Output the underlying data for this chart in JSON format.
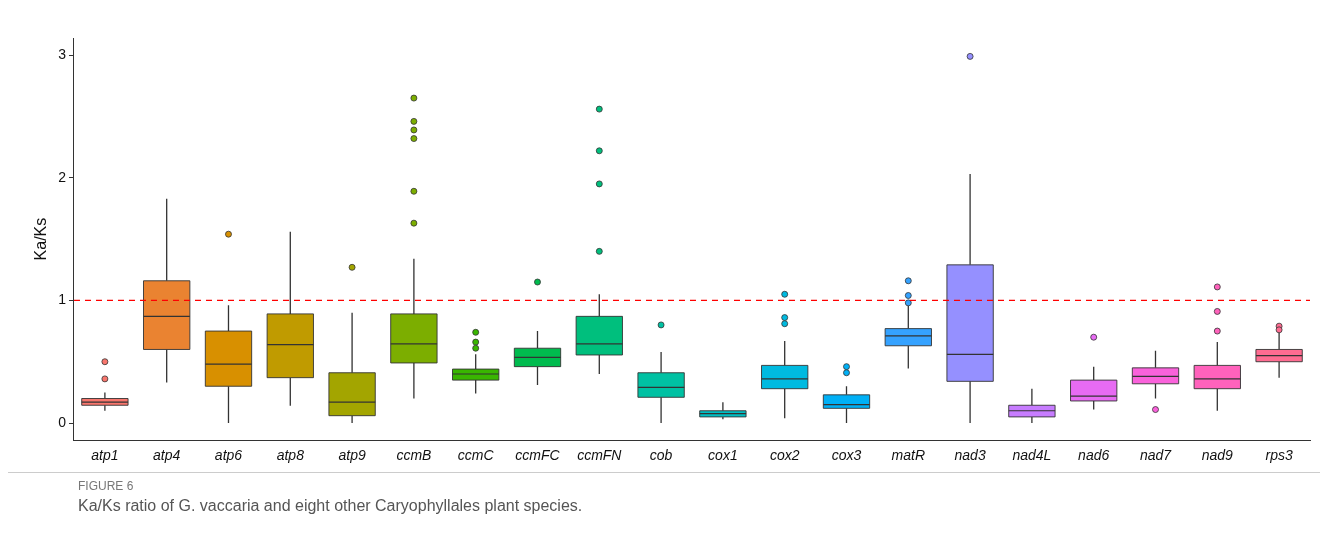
{
  "chart_data": {
    "type": "box",
    "ylabel": "Ka/Ks",
    "categories": [
      "atp1",
      "atp4",
      "atp6",
      "atp8",
      "atp9",
      "ccmB",
      "ccmC",
      "ccmFC",
      "ccmFN",
      "cob",
      "cox1",
      "cox2",
      "cox3",
      "matR",
      "nad3",
      "nad4L",
      "nad6",
      "nad7",
      "nad9",
      "rps3"
    ],
    "colors": [
      "#f8766d",
      "#ea8331",
      "#d89000",
      "#c09b00",
      "#a3a500",
      "#7cae00",
      "#39b600",
      "#00bb4e",
      "#00bf7d",
      "#00c1a3",
      "#00bfc4",
      "#00bae0",
      "#00b0f6",
      "#35a2ff",
      "#9590ff",
      "#c77cff",
      "#e76bf3",
      "#fa62db",
      "#ff62bc",
      "#ff6c91"
    ],
    "boxes": [
      {
        "low": 0.1,
        "q1": 0.145,
        "median": 0.17,
        "q3": 0.2,
        "high": 0.25,
        "outliers": [
          0.5,
          0.36
        ]
      },
      {
        "low": 0.33,
        "q1": 0.6,
        "median": 0.87,
        "q3": 1.16,
        "high": 1.83
      },
      {
        "low": 0.0,
        "q1": 0.3,
        "median": 0.48,
        "q3": 0.75,
        "high": 0.96,
        "outliers": [
          1.54
        ]
      },
      {
        "low": 0.14,
        "q1": 0.37,
        "median": 0.64,
        "q3": 0.89,
        "high": 1.56
      },
      {
        "low": 0.0,
        "q1": 0.06,
        "median": 0.17,
        "q3": 0.41,
        "high": 0.9,
        "outliers": [
          1.27
        ]
      },
      {
        "low": 0.2,
        "q1": 0.49,
        "median": 0.645,
        "q3": 0.89,
        "high": 1.34,
        "outliers": [
          2.65,
          2.46,
          2.39,
          2.32,
          1.89,
          1.63
        ]
      },
      {
        "low": 0.24,
        "q1": 0.35,
        "median": 0.4,
        "q3": 0.44,
        "high": 0.56,
        "outliers": [
          0.74,
          0.66,
          0.61
        ]
      },
      {
        "low": 0.31,
        "q1": 0.46,
        "median": 0.535,
        "q3": 0.61,
        "high": 0.75,
        "outliers": [
          1.15
        ]
      },
      {
        "low": 0.4,
        "q1": 0.555,
        "median": 0.645,
        "q3": 0.87,
        "high": 1.05,
        "outliers": [
          2.56,
          2.22,
          1.95,
          1.4
        ]
      },
      {
        "low": 0.0,
        "q1": 0.21,
        "median": 0.29,
        "q3": 0.41,
        "high": 0.58,
        "outliers": [
          0.8
        ]
      },
      {
        "low": 0.03,
        "q1": 0.05,
        "median": 0.076,
        "q3": 0.1,
        "high": 0.17
      },
      {
        "low": 0.04,
        "q1": 0.28,
        "median": 0.36,
        "q3": 0.47,
        "high": 0.67,
        "outliers": [
          1.05,
          0.86,
          0.81
        ]
      },
      {
        "low": 0.0,
        "q1": 0.12,
        "median": 0.15,
        "q3": 0.23,
        "high": 0.3,
        "outliers": [
          0.46,
          0.41
        ]
      },
      {
        "low": 0.445,
        "q1": 0.63,
        "median": 0.71,
        "q3": 0.77,
        "high": 0.96,
        "outliers": [
          1.16,
          1.04,
          0.98
        ]
      },
      {
        "low": 0.0,
        "q1": 0.34,
        "median": 0.56,
        "q3": 1.29,
        "high": 2.03,
        "outliers": [
          2.99
        ]
      },
      {
        "low": 0.0,
        "q1": 0.05,
        "median": 0.1,
        "q3": 0.145,
        "high": 0.28
      },
      {
        "low": 0.11,
        "q1": 0.18,
        "median": 0.22,
        "q3": 0.35,
        "high": 0.46,
        "outliers": [
          0.7
        ]
      },
      {
        "low": 0.2,
        "q1": 0.32,
        "median": 0.38,
        "q3": 0.45,
        "high": 0.59,
        "outliers": [
          0.11
        ]
      },
      {
        "low": 0.1,
        "q1": 0.28,
        "median": 0.36,
        "q3": 0.47,
        "high": 0.66,
        "outliers": [
          1.11,
          0.91,
          0.75
        ]
      },
      {
        "low": 0.37,
        "q1": 0.5,
        "median": 0.55,
        "q3": 0.6,
        "high": 0.74,
        "outliers": [
          0.79,
          0.76
        ]
      }
    ],
    "ylim": [
      -0.14,
      3.14
    ],
    "yticks": [
      0,
      1,
      2,
      3
    ],
    "grid": false,
    "ref_lines": [
      {
        "axis": "y",
        "value": 1,
        "color": "#ff0000",
        "line_style": "dashed"
      }
    ],
    "annotations": [
      "FIGURE 6",
      "Ka/Ks ratio of G. vaccaria and eight other Caryophyllales plant species."
    ]
  }
}
